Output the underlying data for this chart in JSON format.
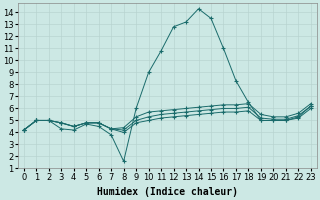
{
  "xlabel": "Humidex (Indice chaleur)",
  "xlim": [
    -0.5,
    23.5
  ],
  "ylim": [
    1,
    14.8
  ],
  "yticks": [
    1,
    2,
    3,
    4,
    5,
    6,
    7,
    8,
    9,
    10,
    11,
    12,
    13,
    14
  ],
  "xticks": [
    0,
    1,
    2,
    3,
    4,
    5,
    6,
    7,
    8,
    9,
    10,
    11,
    12,
    13,
    14,
    15,
    16,
    17,
    18,
    19,
    20,
    21,
    22,
    23
  ],
  "bg_color": "#cce8e4",
  "grid_color": "#b8d4d0",
  "line_color": "#1a6b6b",
  "lines": [
    [
      4.2,
      5.0,
      5.0,
      4.3,
      4.2,
      4.7,
      4.5,
      3.8,
      1.6,
      6.0,
      9.0,
      10.8,
      12.8,
      13.2,
      14.3,
      13.5,
      11.0,
      8.3,
      6.5,
      5.0,
      5.0,
      5.0,
      5.3,
      6.2
    ],
    [
      4.2,
      5.0,
      5.0,
      4.8,
      4.5,
      4.8,
      4.8,
      4.3,
      4.0,
      4.8,
      5.0,
      5.2,
      5.3,
      5.4,
      5.5,
      5.6,
      5.7,
      5.7,
      5.8,
      5.0,
      5.0,
      5.0,
      5.2,
      6.0
    ],
    [
      4.2,
      5.0,
      5.0,
      4.8,
      4.5,
      4.8,
      4.8,
      4.3,
      4.2,
      5.0,
      5.3,
      5.5,
      5.6,
      5.7,
      5.8,
      5.9,
      6.0,
      6.0,
      6.1,
      5.2,
      5.1,
      5.1,
      5.4,
      6.2
    ],
    [
      4.2,
      5.0,
      5.0,
      4.8,
      4.5,
      4.8,
      4.8,
      4.3,
      4.4,
      5.3,
      5.7,
      5.8,
      5.9,
      6.0,
      6.1,
      6.2,
      6.3,
      6.3,
      6.4,
      5.5,
      5.3,
      5.3,
      5.6,
      6.4
    ]
  ],
  "label_fontsize": 7,
  "tick_fontsize": 6
}
